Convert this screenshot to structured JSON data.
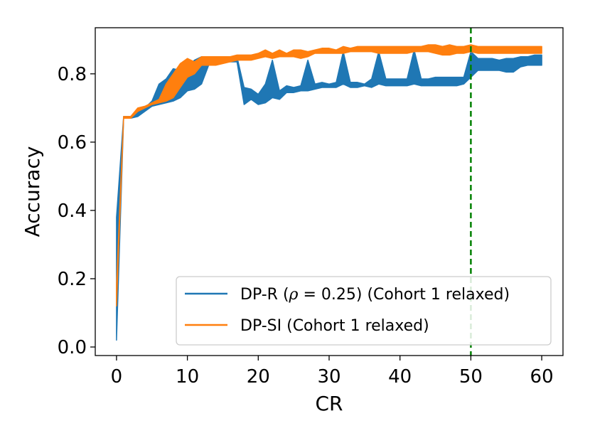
{
  "chart_data": {
    "type": "area",
    "xlabel": "CR",
    "ylabel": "Accuracy",
    "xlim": [
      -3,
      63
    ],
    "ylim": [
      -0.025,
      0.935
    ],
    "xticks": [
      0,
      10,
      20,
      30,
      40,
      50,
      60
    ],
    "xtick_labels": [
      "0",
      "10",
      "20",
      "30",
      "40",
      "50",
      "60"
    ],
    "yticks": [
      0.0,
      0.2,
      0.4,
      0.6,
      0.8
    ],
    "ytick_labels": [
      "0.0",
      "0.2",
      "0.4",
      "0.6",
      "0.8"
    ],
    "grid": false,
    "legend_position": "lower-right",
    "colors": {
      "dp_r": "#1f77b4",
      "dp_si": "#ff7f0e",
      "vline": "#008000"
    },
    "vertical_line": {
      "x": 50,
      "style": "dashed"
    },
    "legend": {
      "dp_r": {
        "prefix": "DP-R (",
        "rho": "ρ",
        "rho_value": " = 0.25",
        "suffix": ") (Cohort 1 relaxed)"
      },
      "dp_si": {
        "label": "DP-SI (Cohort 1 relaxed)"
      }
    },
    "series": [
      {
        "key": "dp_r",
        "x": [
          0,
          1,
          2,
          3,
          4,
          5,
          6,
          7,
          8,
          9,
          10,
          11,
          12,
          13,
          14,
          15,
          16,
          17,
          18,
          19,
          20,
          21,
          22,
          23,
          24,
          25,
          26,
          27,
          28,
          29,
          30,
          31,
          32,
          33,
          34,
          35,
          36,
          37,
          38,
          39,
          40,
          41,
          42,
          43,
          44,
          45,
          46,
          47,
          48,
          49,
          50,
          51,
          52,
          53,
          54,
          55,
          56,
          57,
          58,
          59,
          60
        ],
        "upper": [
          0.38,
          0.675,
          0.675,
          0.69,
          0.7,
          0.72,
          0.77,
          0.785,
          0.815,
          0.81,
          0.82,
          0.84,
          0.85,
          0.85,
          0.85,
          0.85,
          0.85,
          0.85,
          0.76,
          0.755,
          0.74,
          0.77,
          0.84,
          0.75,
          0.765,
          0.76,
          0.765,
          0.84,
          0.77,
          0.775,
          0.77,
          0.775,
          0.865,
          0.775,
          0.775,
          0.77,
          0.785,
          0.865,
          0.785,
          0.785,
          0.785,
          0.785,
          0.87,
          0.785,
          0.785,
          0.79,
          0.79,
          0.79,
          0.79,
          0.79,
          0.865,
          0.845,
          0.845,
          0.845,
          0.84,
          0.845,
          0.845,
          0.85,
          0.85,
          0.855,
          0.855
        ],
        "lower": [
          0.02,
          0.67,
          0.67,
          0.675,
          0.69,
          0.705,
          0.71,
          0.715,
          0.72,
          0.73,
          0.75,
          0.755,
          0.77,
          0.825,
          0.83,
          0.835,
          0.835,
          0.835,
          0.71,
          0.725,
          0.71,
          0.715,
          0.73,
          0.725,
          0.745,
          0.745,
          0.75,
          0.75,
          0.755,
          0.76,
          0.76,
          0.76,
          0.77,
          0.76,
          0.76,
          0.765,
          0.76,
          0.77,
          0.765,
          0.765,
          0.765,
          0.765,
          0.77,
          0.765,
          0.765,
          0.765,
          0.765,
          0.765,
          0.765,
          0.77,
          0.79,
          0.81,
          0.81,
          0.81,
          0.81,
          0.805,
          0.805,
          0.82,
          0.825,
          0.825,
          0.825
        ]
      },
      {
        "key": "dp_si",
        "x": [
          0,
          1,
          2,
          3,
          4,
          5,
          6,
          7,
          8,
          9,
          10,
          11,
          12,
          13,
          14,
          15,
          16,
          17,
          18,
          19,
          20,
          21,
          22,
          23,
          24,
          25,
          26,
          27,
          28,
          29,
          30,
          31,
          32,
          33,
          34,
          35,
          36,
          37,
          38,
          39,
          40,
          41,
          42,
          43,
          44,
          45,
          46,
          47,
          48,
          49,
          50,
          51,
          52,
          53,
          54,
          55,
          56,
          57,
          58,
          59,
          60
        ],
        "upper": [
          0.18,
          0.675,
          0.675,
          0.7,
          0.705,
          0.715,
          0.725,
          0.77,
          0.8,
          0.83,
          0.845,
          0.835,
          0.85,
          0.85,
          0.85,
          0.85,
          0.85,
          0.855,
          0.855,
          0.855,
          0.86,
          0.87,
          0.86,
          0.87,
          0.86,
          0.87,
          0.87,
          0.865,
          0.87,
          0.875,
          0.875,
          0.87,
          0.88,
          0.875,
          0.88,
          0.88,
          0.88,
          0.88,
          0.88,
          0.88,
          0.88,
          0.88,
          0.88,
          0.88,
          0.885,
          0.885,
          0.88,
          0.885,
          0.88,
          0.88,
          0.885,
          0.88,
          0.88,
          0.88,
          0.88,
          0.88,
          0.88,
          0.88,
          0.88,
          0.88,
          0.88
        ],
        "lower": [
          0.12,
          0.67,
          0.67,
          0.69,
          0.7,
          0.71,
          0.715,
          0.72,
          0.73,
          0.76,
          0.79,
          0.8,
          0.825,
          0.825,
          0.825,
          0.83,
          0.835,
          0.84,
          0.84,
          0.84,
          0.845,
          0.85,
          0.845,
          0.85,
          0.85,
          0.85,
          0.845,
          0.85,
          0.86,
          0.86,
          0.86,
          0.86,
          0.86,
          0.865,
          0.865,
          0.865,
          0.865,
          0.86,
          0.86,
          0.86,
          0.86,
          0.86,
          0.865,
          0.865,
          0.865,
          0.86,
          0.855,
          0.855,
          0.86,
          0.86,
          0.865,
          0.86,
          0.86,
          0.86,
          0.86,
          0.86,
          0.86,
          0.86,
          0.86,
          0.86,
          0.86
        ]
      }
    ]
  }
}
